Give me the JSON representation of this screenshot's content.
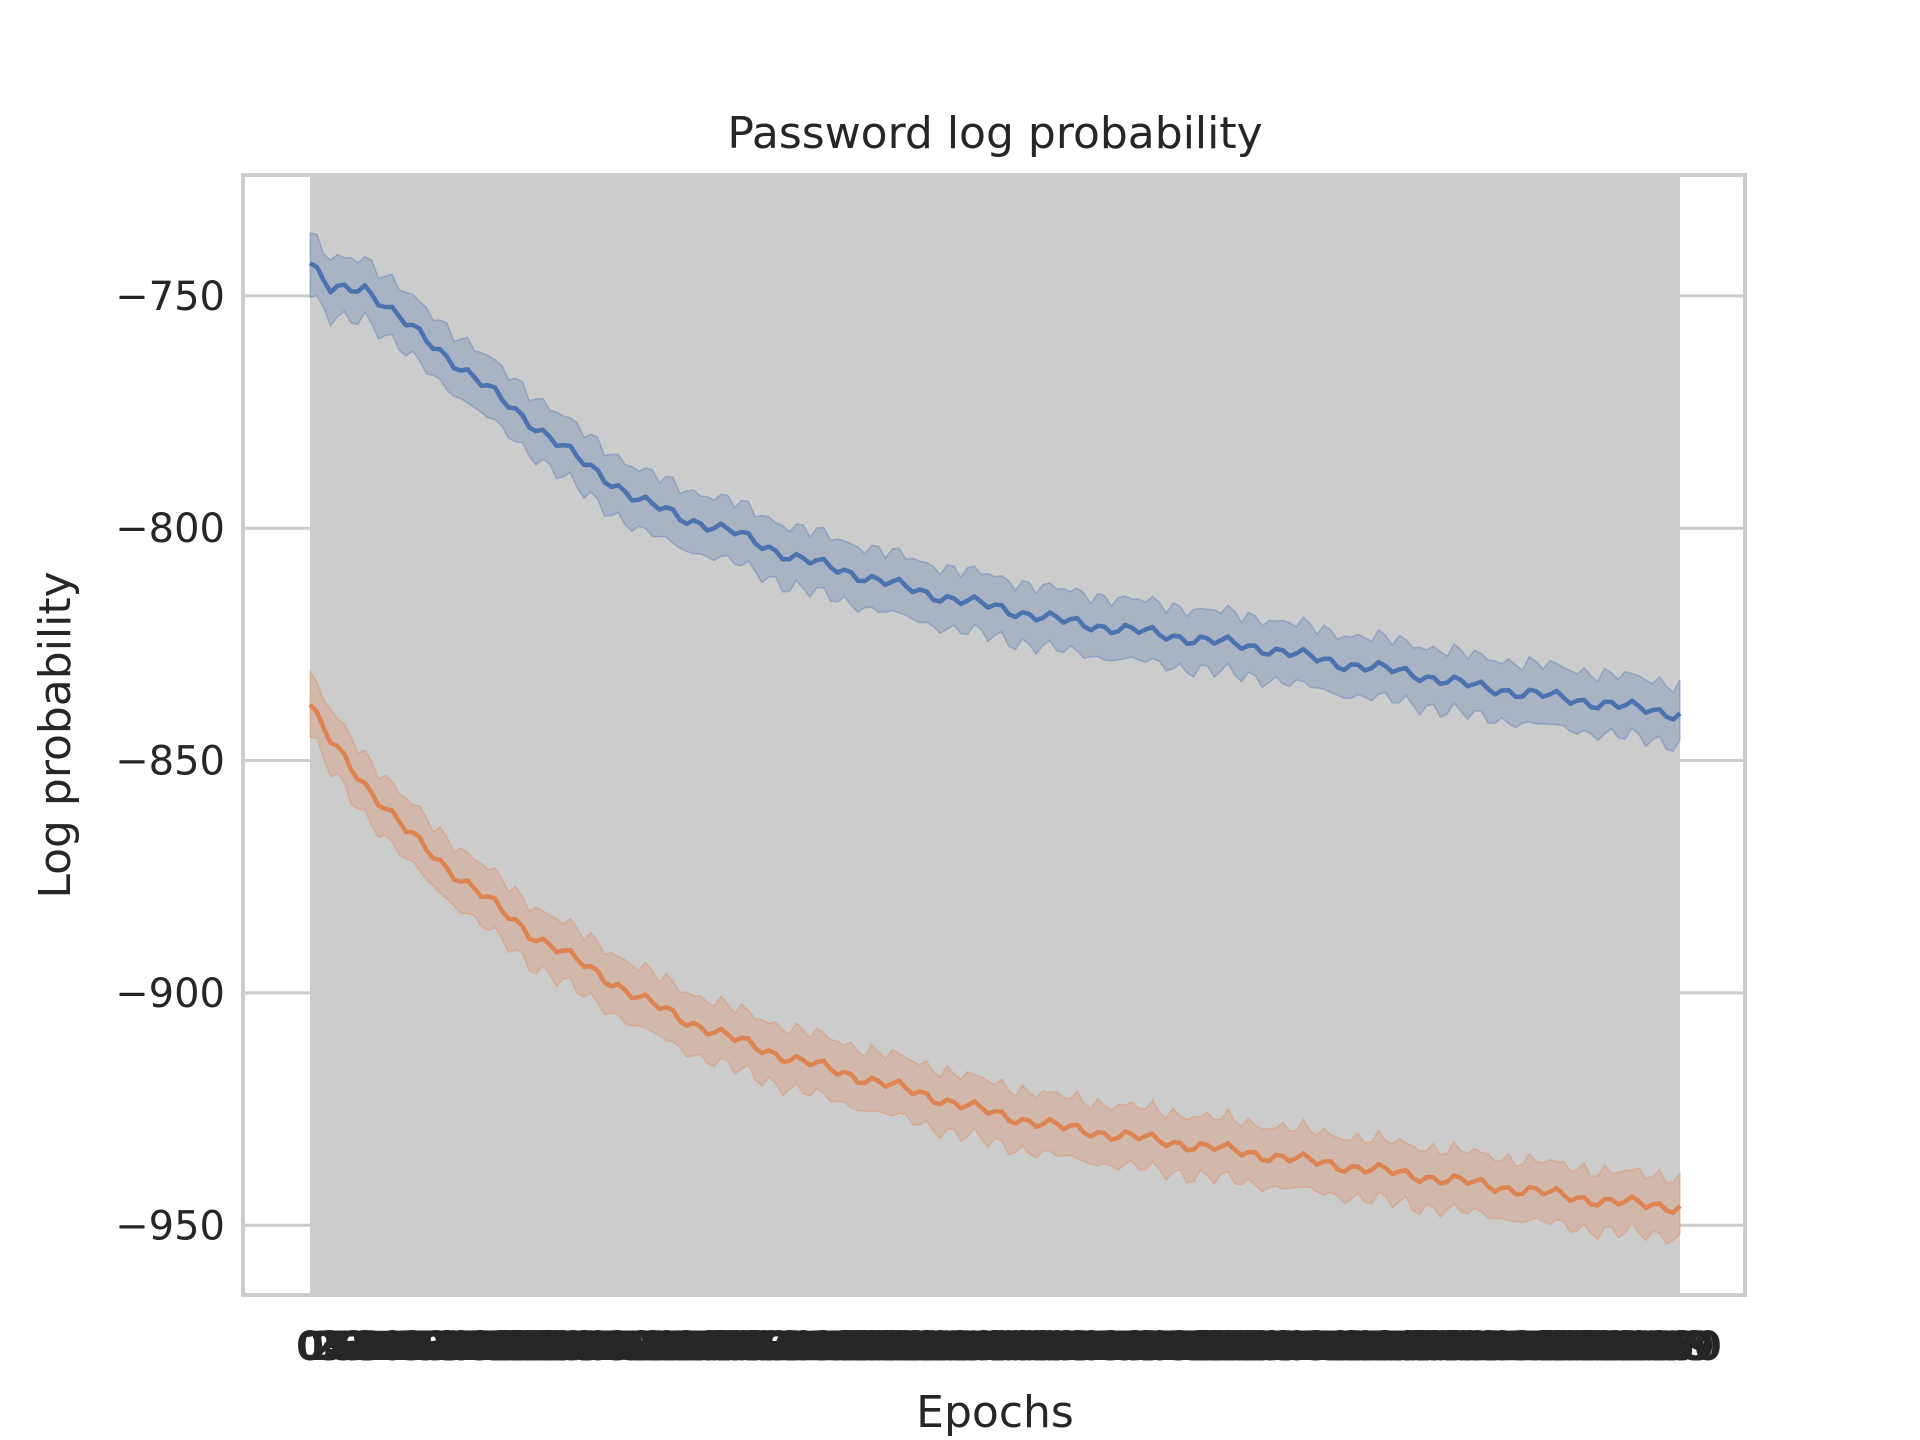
{
  "chart_data": {
    "type": "line",
    "title": "Password log probability",
    "xlabel": "Epochs",
    "ylabel": "Log probability",
    "ylim": [
      -965,
      -724
    ],
    "y_ticks": [
      -750,
      -800,
      -850,
      -900,
      -950
    ],
    "y_tick_labels": [
      "−750",
      "−800",
      "−850",
      "−900",
      "−950"
    ],
    "x_range": [
      0,
      200
    ],
    "x_tick_labels_overlapping": true,
    "x_tick_label_first": "0",
    "x_tick_label_last": "200",
    "background_band": "#cccccc",
    "grid": true,
    "series": [
      {
        "color": "#4c72b0",
        "points": [
          [
            0,
            -743
          ],
          [
            3,
            -749
          ],
          [
            8,
            -748
          ],
          [
            14,
            -756
          ],
          [
            20,
            -763
          ],
          [
            26,
            -770
          ],
          [
            32,
            -777
          ],
          [
            40,
            -786
          ],
          [
            48,
            -794
          ],
          [
            55,
            -798
          ],
          [
            62,
            -801
          ],
          [
            70,
            -806
          ],
          [
            80,
            -810
          ],
          [
            90,
            -814
          ],
          [
            100,
            -817
          ],
          [
            110,
            -820
          ],
          [
            120,
            -822
          ],
          [
            130,
            -824
          ],
          [
            140,
            -826
          ],
          [
            150,
            -829
          ],
          [
            160,
            -831
          ],
          [
            170,
            -834
          ],
          [
            180,
            -836
          ],
          [
            190,
            -838
          ],
          [
            200,
            -840
          ]
        ],
        "band": 6.5
      },
      {
        "color": "#dd8452",
        "points": [
          [
            0,
            -838
          ],
          [
            3,
            -846
          ],
          [
            8,
            -855
          ],
          [
            14,
            -865
          ],
          [
            20,
            -873
          ],
          [
            26,
            -880
          ],
          [
            32,
            -887
          ],
          [
            40,
            -894
          ],
          [
            48,
            -901
          ],
          [
            55,
            -906
          ],
          [
            62,
            -910
          ],
          [
            70,
            -914
          ],
          [
            80,
            -918
          ],
          [
            90,
            -922
          ],
          [
            100,
            -926
          ],
          [
            110,
            -929
          ],
          [
            120,
            -931
          ],
          [
            130,
            -933
          ],
          [
            140,
            -935
          ],
          [
            150,
            -937
          ],
          [
            160,
            -939
          ],
          [
            170,
            -941
          ],
          [
            180,
            -943
          ],
          [
            190,
            -945
          ],
          [
            200,
            -946
          ]
        ],
        "band": 6.5
      }
    ]
  }
}
